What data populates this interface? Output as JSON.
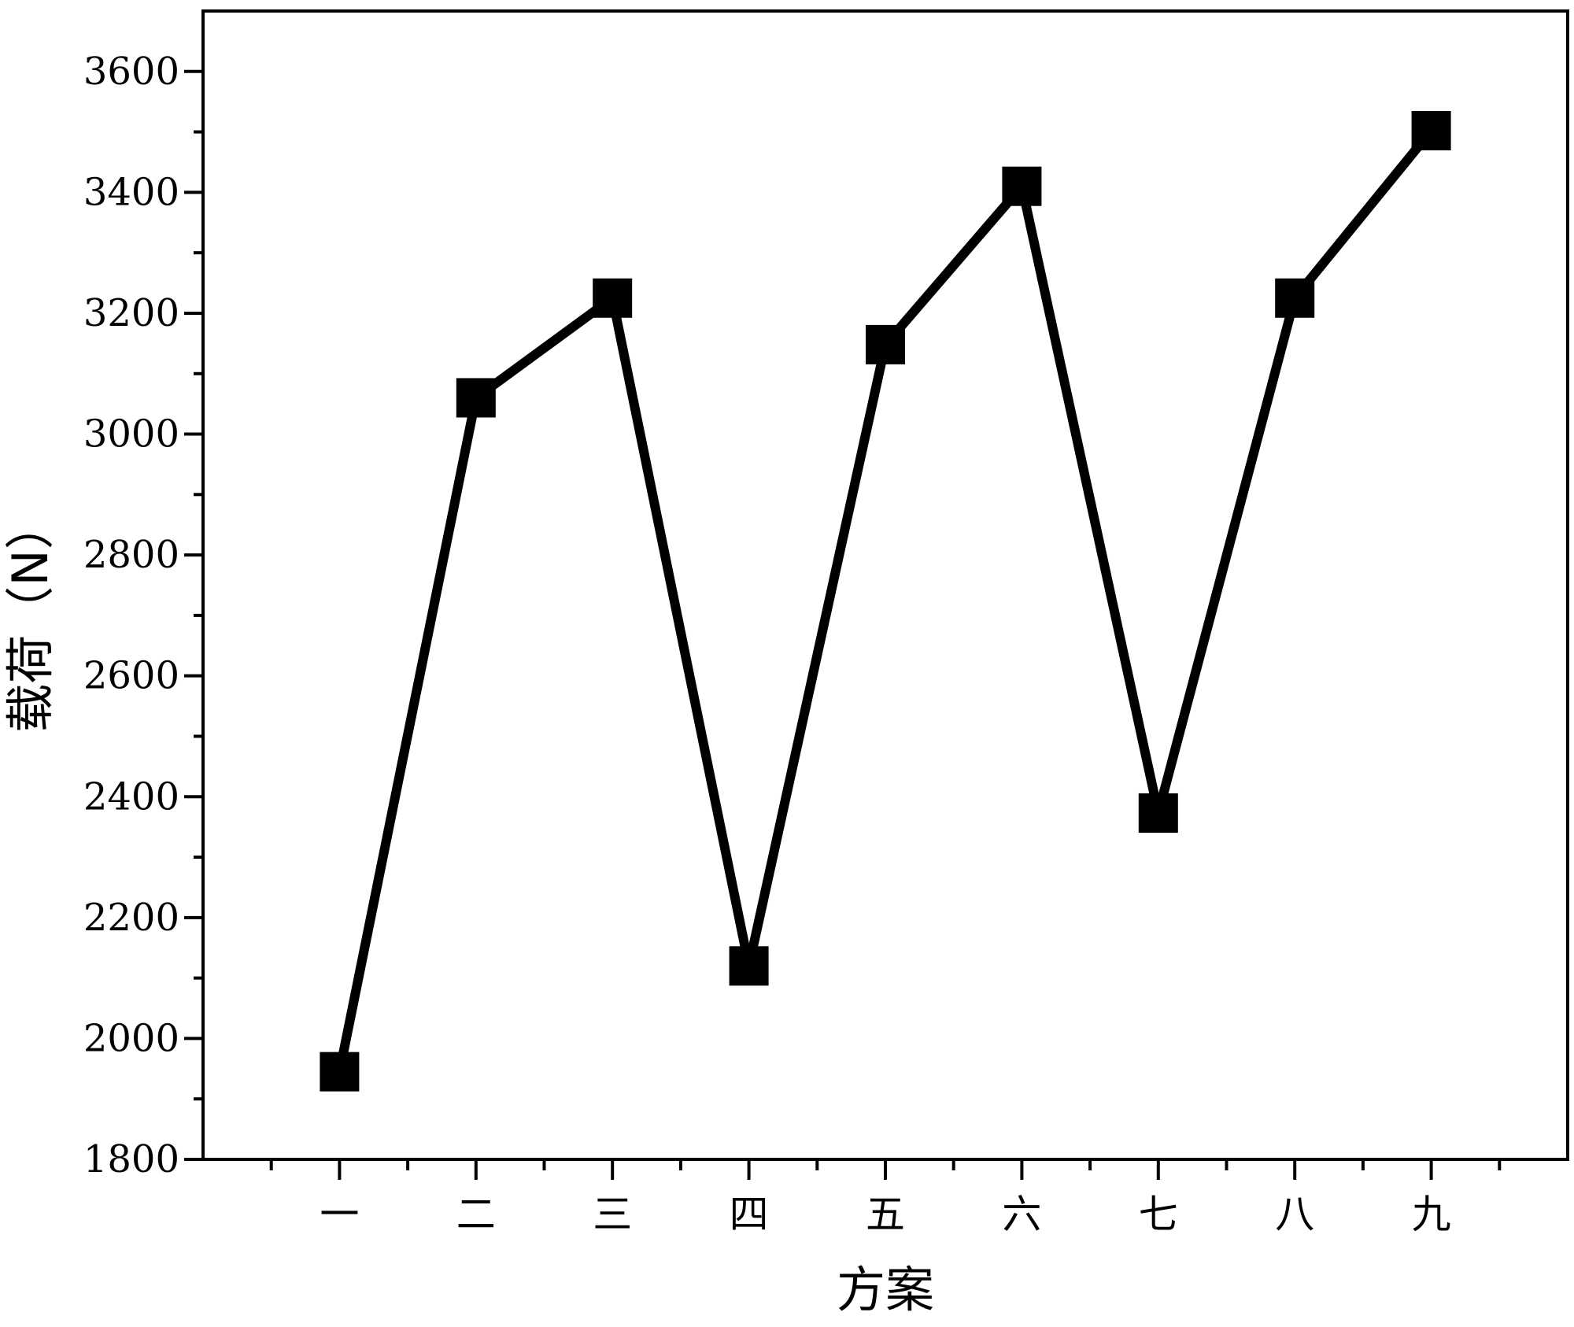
{
  "chart_data": {
    "type": "line",
    "title": "",
    "xlabel": "方案",
    "ylabel": "载荷（N）",
    "categories": [
      "一",
      "二",
      "三",
      "四",
      "五",
      "六",
      "七",
      "八",
      "九"
    ],
    "series": [
      {
        "values": [
          1945,
          3060,
          3225,
          2120,
          3148,
          3410,
          2373,
          3225,
          3502
        ]
      }
    ],
    "ylim": [
      1800,
      3700
    ],
    "yticks": [
      1800,
      2000,
      2200,
      2400,
      2600,
      2800,
      3000,
      3200,
      3400,
      3600
    ],
    "marker": "square",
    "color": "#000000",
    "grid": false,
    "legend": "none"
  }
}
